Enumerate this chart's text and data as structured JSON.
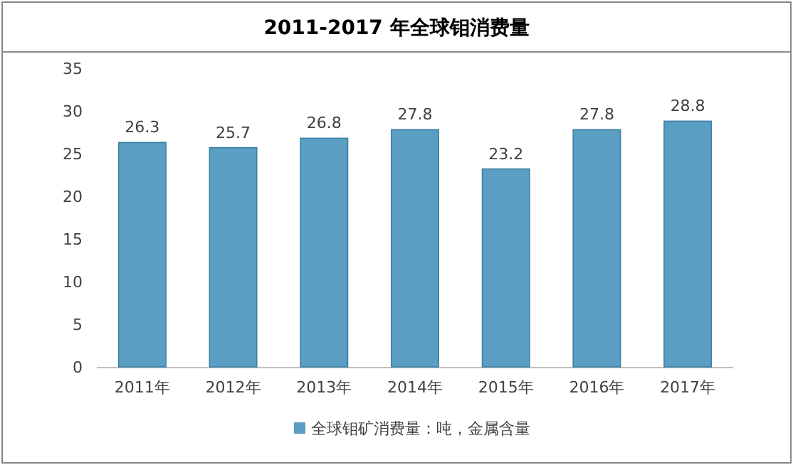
{
  "chart_data": {
    "type": "bar",
    "title": "2011-2017 年全球钼消费量",
    "categories": [
      "2011年",
      "2012年",
      "2013年",
      "2014年",
      "2015年",
      "2016年",
      "2017年"
    ],
    "series": [
      {
        "name": "全球钼矿消费量：吨，金属含量",
        "color": "#5a9ec4",
        "values": [
          26.3,
          25.7,
          26.8,
          27.8,
          23.2,
          27.8,
          28.8
        ]
      }
    ],
    "ylim": [
      0,
      35
    ],
    "yticks": [
      0,
      5,
      10,
      15,
      20,
      25,
      30,
      35
    ],
    "data_labels": true,
    "legend": "bottom"
  }
}
